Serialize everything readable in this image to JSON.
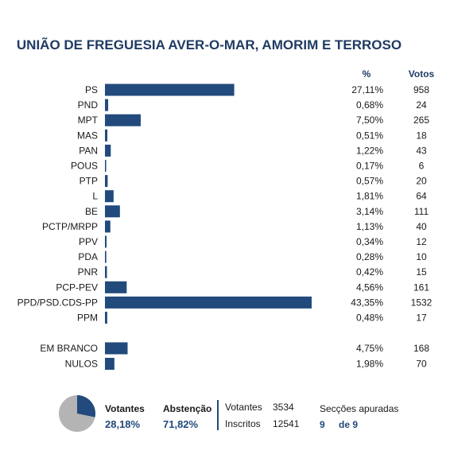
{
  "chart_data": {
    "type": "bar",
    "title": "UNIÃO DE FREGUESIA AVER-O-MAR, AMORIM E TERROSO",
    "columns": {
      "pct": "%",
      "votes": "Votos"
    },
    "parties": [
      {
        "name": "PS",
        "value": 27.11,
        "pct_label": "27,11%",
        "votes": "958"
      },
      {
        "name": "PND",
        "value": 0.68,
        "pct_label": "0,68%",
        "votes": "24"
      },
      {
        "name": "MPT",
        "value": 7.5,
        "pct_label": "7,50%",
        "votes": "265"
      },
      {
        "name": "MAS",
        "value": 0.51,
        "pct_label": "0,51%",
        "votes": "18"
      },
      {
        "name": "PAN",
        "value": 1.22,
        "pct_label": "1,22%",
        "votes": "43"
      },
      {
        "name": "POUS",
        "value": 0.17,
        "pct_label": "0,17%",
        "votes": "6"
      },
      {
        "name": "PTP",
        "value": 0.57,
        "pct_label": "0,57%",
        "votes": "20"
      },
      {
        "name": "L",
        "value": 1.81,
        "pct_label": "1,81%",
        "votes": "64"
      },
      {
        "name": "BE",
        "value": 3.14,
        "pct_label": "3,14%",
        "votes": "111"
      },
      {
        "name": "PCTP/MRPP",
        "value": 1.13,
        "pct_label": "1,13%",
        "votes": "40"
      },
      {
        "name": "PPV",
        "value": 0.34,
        "pct_label": "0,34%",
        "votes": "12"
      },
      {
        "name": "PDA",
        "value": 0.28,
        "pct_label": "0,28%",
        "votes": "10"
      },
      {
        "name": "PNR",
        "value": 0.42,
        "pct_label": "0,42%",
        "votes": "15"
      },
      {
        "name": "PCP-PEV",
        "value": 4.56,
        "pct_label": "4,56%",
        "votes": "161"
      },
      {
        "name": "PPD/PSD.CDS-PP",
        "value": 43.35,
        "pct_label": "43,35%",
        "votes": "1532"
      },
      {
        "name": "PPM",
        "value": 0.48,
        "pct_label": "0,48%",
        "votes": "17"
      }
    ],
    "others": [
      {
        "name": "EM BRANCO",
        "value": 4.75,
        "pct_label": "4,75%",
        "votes": "168"
      },
      {
        "name": "NULOS",
        "value": 1.98,
        "pct_label": "1,98%",
        "votes": "70"
      }
    ],
    "turnout": {
      "pie": {
        "votantes": 28.18,
        "abstencao": 71.82
      },
      "votantes_label": "Votantes",
      "votantes_value": "28,18%",
      "abstencao_label": "Abstenção",
      "abstencao_value": "71,82%",
      "votantes_count_label": "Votantes",
      "votantes_count": "3534",
      "inscritos_label": "Inscritos",
      "inscritos_count": "12541",
      "seccoes_label": "Secções apuradas",
      "seccoes_done": "9",
      "seccoes_total": "de 9"
    },
    "colors": {
      "bar": "#224a7c",
      "pie_votantes": "#224a7c",
      "pie_abstencao": "#b4b4b4"
    }
  }
}
